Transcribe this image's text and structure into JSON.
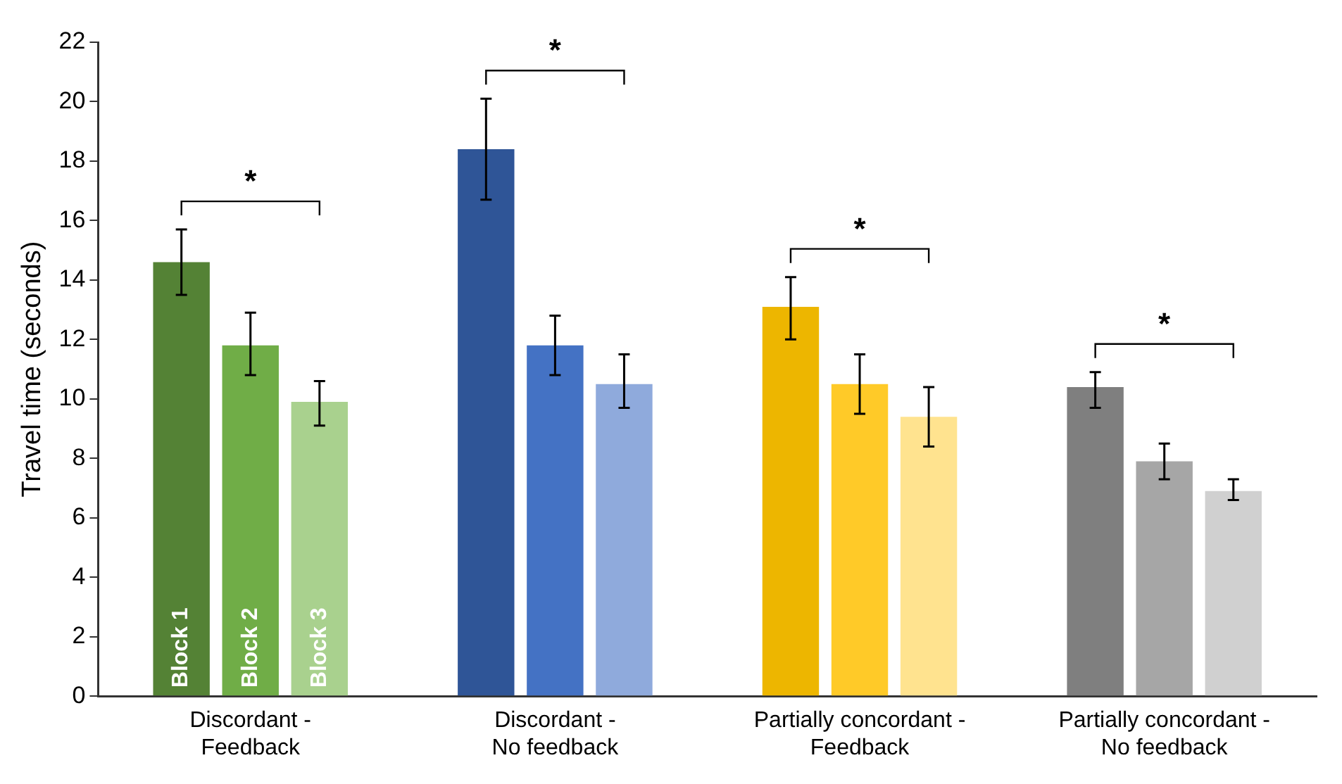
{
  "chart_data": {
    "type": "bar",
    "ylabel": "Travel time (seconds)",
    "categories": [
      "Discordant - Feedback",
      "Discordant - No feedback",
      "Partially concordant - Feedback",
      "Partially concordant - No feedback"
    ],
    "series": [
      {
        "name": "Block 1",
        "colors": [
          "#548235",
          "#2f5597",
          "#edb600",
          "#7f7f7f"
        ],
        "values": [
          14.6,
          18.4,
          13.1,
          10.4
        ],
        "errors": [
          [
            13.5,
            15.7
          ],
          [
            16.7,
            20.1
          ],
          [
            12.0,
            14.1
          ],
          [
            9.7,
            10.9
          ]
        ]
      },
      {
        "name": "Block 2",
        "colors": [
          "#70ad47",
          "#4472c4",
          "#ffca28",
          "#a6a6a6"
        ],
        "values": [
          11.8,
          11.8,
          10.5,
          7.9
        ],
        "errors": [
          [
            10.8,
            12.9
          ],
          [
            10.8,
            12.8
          ],
          [
            9.5,
            11.5
          ],
          [
            7.3,
            8.5
          ]
        ]
      },
      {
        "name": "Block 3",
        "colors": [
          "#a9d18e",
          "#8faadc",
          "#ffe38f",
          "#d0d0d0"
        ],
        "values": [
          9.9,
          10.5,
          9.4,
          6.9
        ],
        "errors": [
          [
            9.1,
            10.6
          ],
          [
            9.7,
            11.5
          ],
          [
            8.4,
            10.4
          ],
          [
            6.6,
            7.3
          ]
        ]
      }
    ],
    "ylim": [
      0,
      22
    ],
    "yticks": [
      0,
      2,
      4,
      6,
      8,
      10,
      12,
      14,
      16,
      18,
      20,
      22
    ],
    "grid": false,
    "legend": false,
    "annotations": [
      "*",
      "*",
      "*",
      "*"
    ]
  }
}
